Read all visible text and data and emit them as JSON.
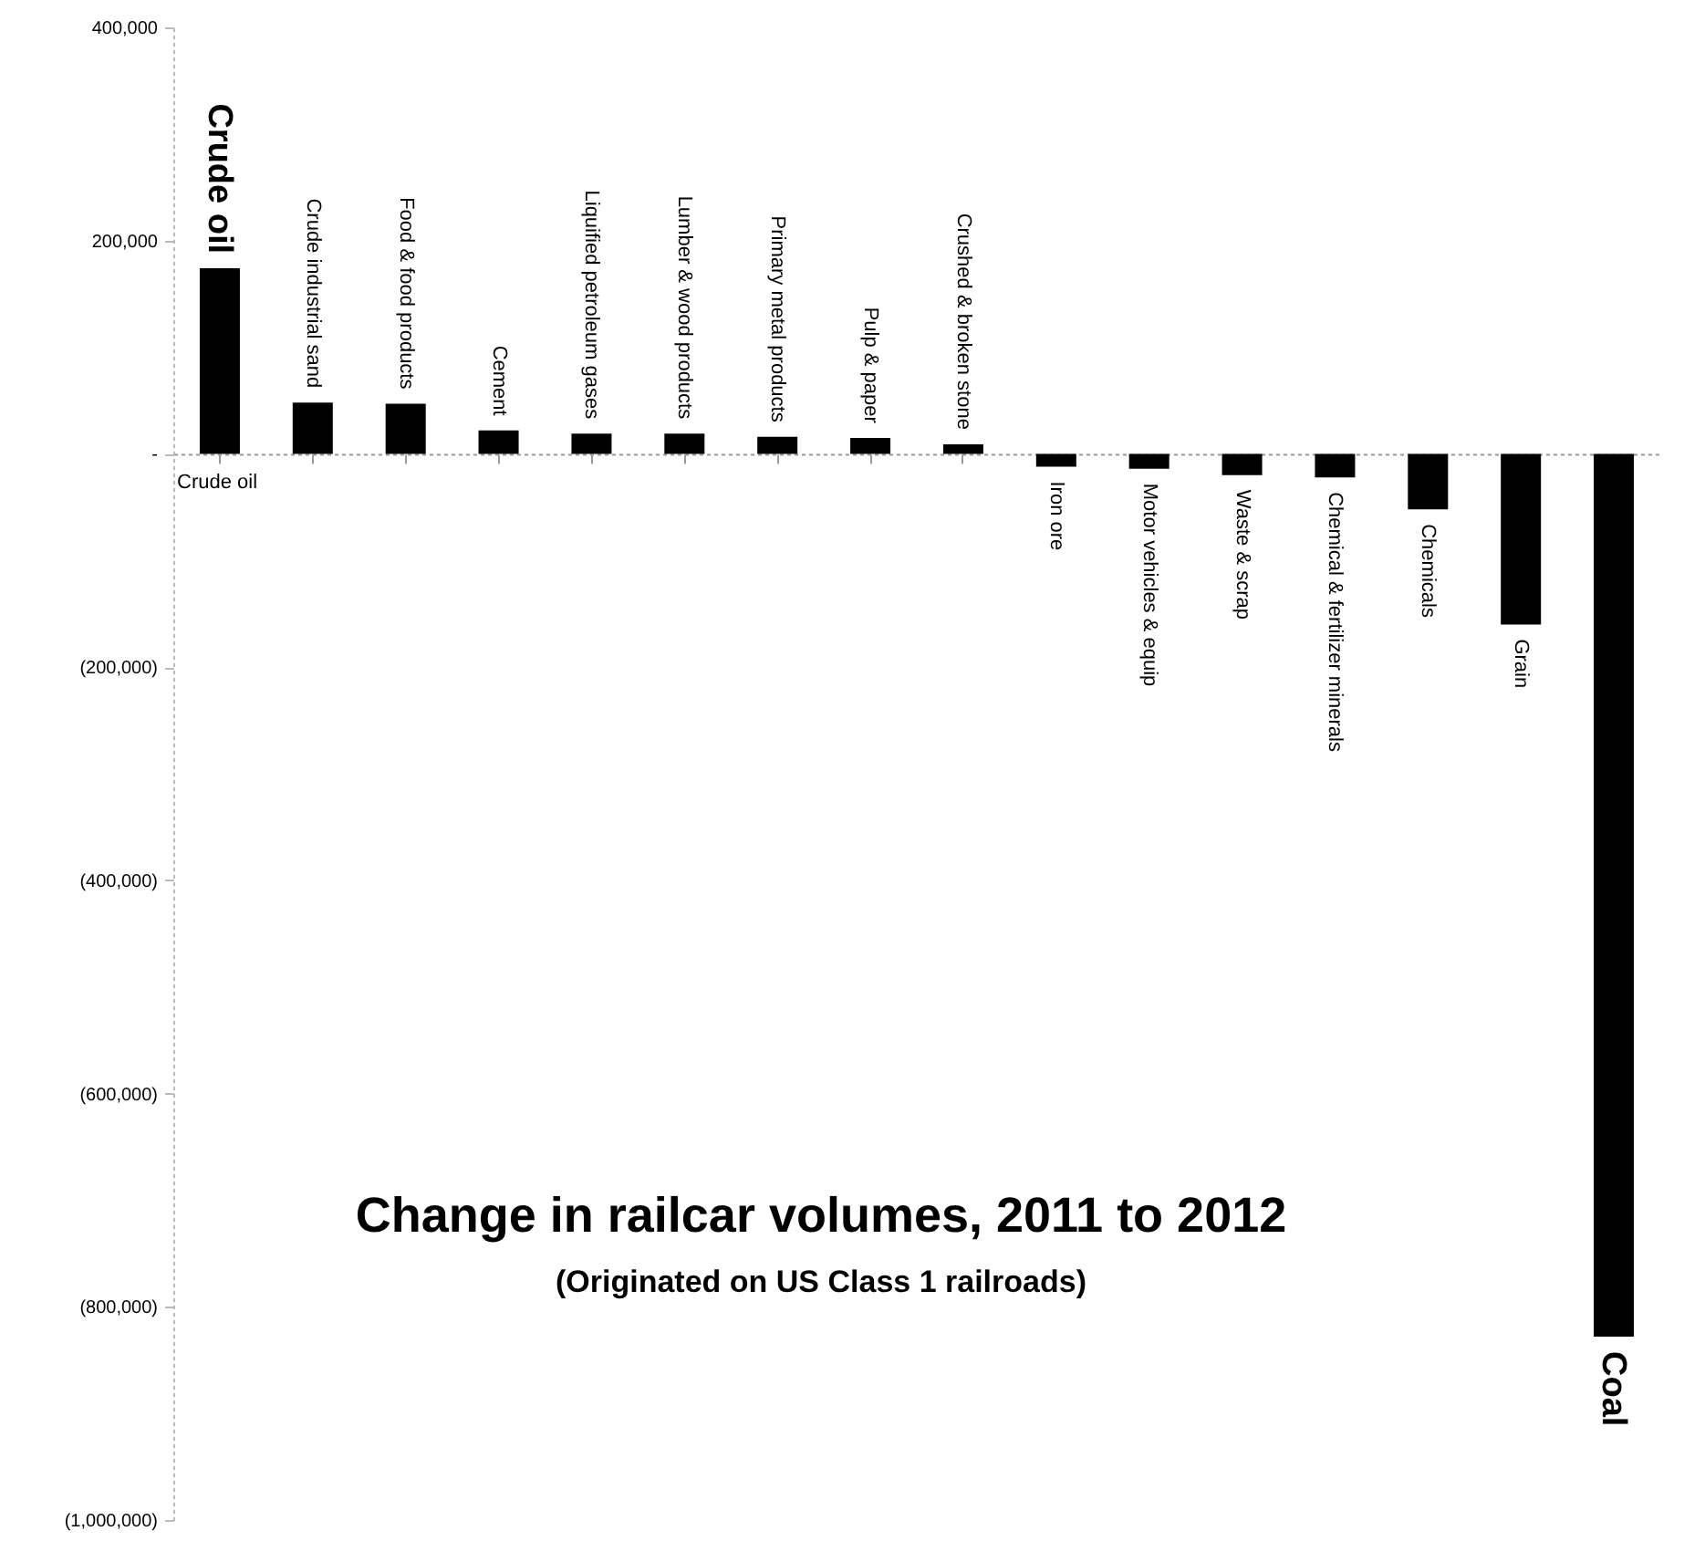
{
  "chart_data": {
    "type": "bar",
    "title": "Change in railcar volumes, 2011 to 2012",
    "subtitle": "(Originated on US Class 1 railroads)",
    "categories": [
      "Crude oil",
      "Crude industrial sand",
      "Food & food products",
      "Cement",
      "Liquified petroleum gases",
      "Lumber  & wood products",
      "Primary metal products",
      "Pulp & paper",
      "Crushed & broken stone",
      "Iron ore",
      "Motor vehicles & equip",
      "Waste & scrap",
      "Chemical & fertilizer minerals",
      "Chemicals",
      "Grain",
      "Coal"
    ],
    "values": [
      174000,
      48000,
      47000,
      22000,
      19000,
      19000,
      16000,
      15000,
      9000,
      -12000,
      -14000,
      -20000,
      -22000,
      -52000,
      -160000,
      -828000
    ],
    "color": "#000000",
    "ylim": [
      -1000000,
      400000
    ],
    "yticks": [
      {
        "value": 400000,
        "label": "400,000"
      },
      {
        "value": 200000,
        "label": "200,000"
      },
      {
        "value": 0,
        "label": "-"
      },
      {
        "value": -200000,
        "label": "(200,000)"
      },
      {
        "value": -400000,
        "label": "(400,000)"
      },
      {
        "value": -600000,
        "label": "(600,000)"
      },
      {
        "value": -800000,
        "label": "(800,000)"
      },
      {
        "value": -1000000,
        "label": "(1,000,000)"
      }
    ],
    "annotations": [
      {
        "text": "Crude oil",
        "x": "Crude oil",
        "y": 0
      }
    ],
    "ylabel": null
  }
}
